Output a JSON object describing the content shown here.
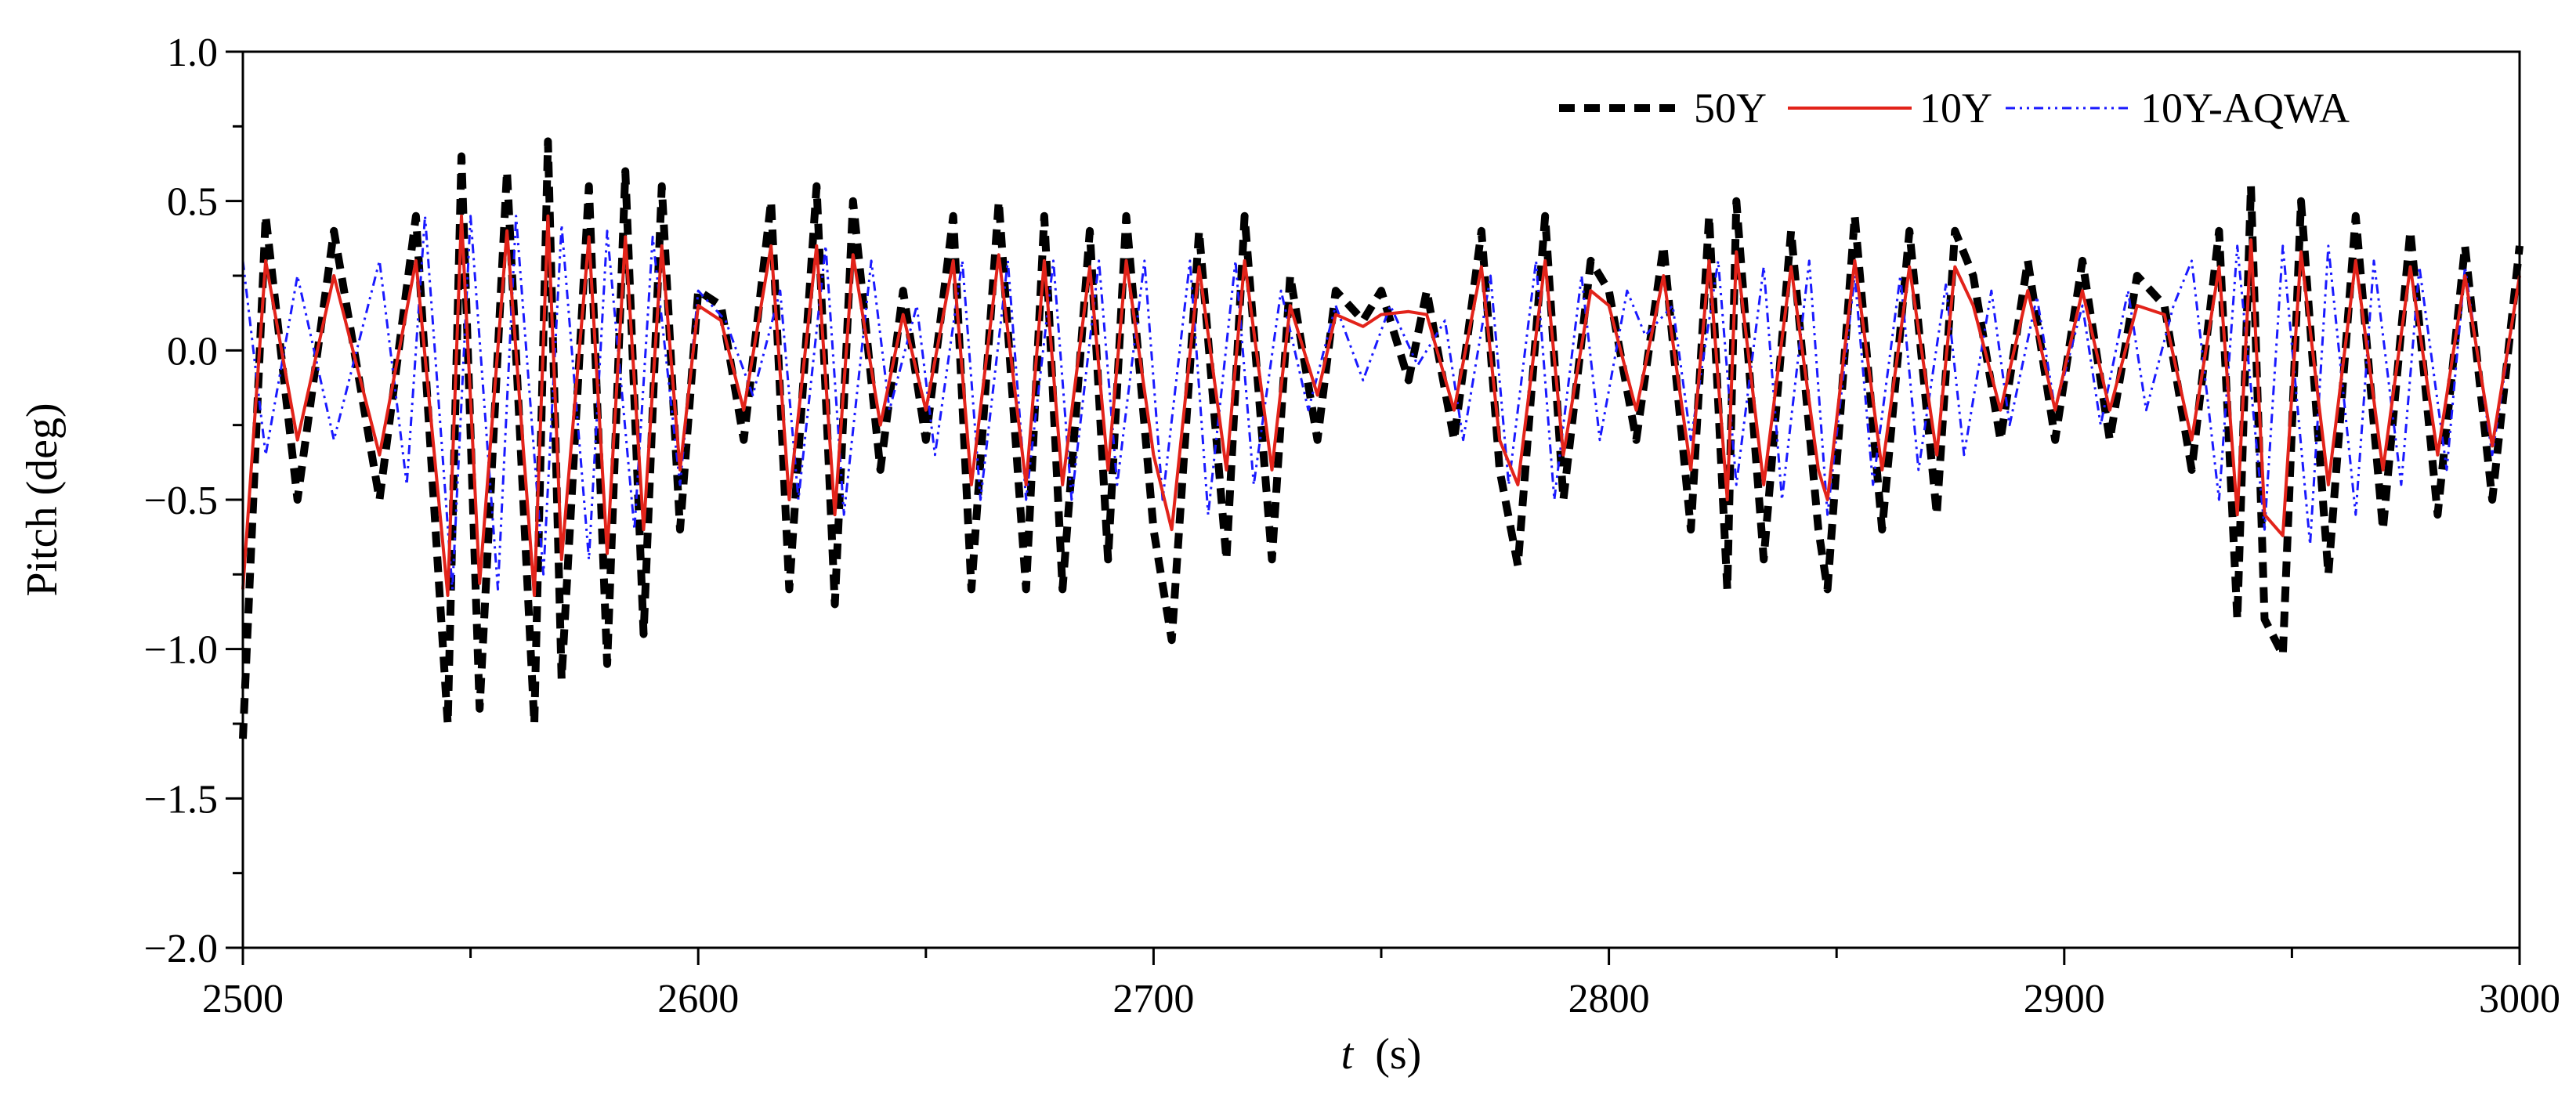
{
  "chart_data": {
    "type": "line",
    "title": "",
    "xlabel_italic": "t",
    "xlabel_unit": "(s)",
    "ylabel": "Pitch (deg)",
    "xlim": [
      2500,
      3000
    ],
    "ylim": [
      -2.0,
      1.0
    ],
    "x_ticks": [
      2500,
      2600,
      2700,
      2800,
      2900,
      3000
    ],
    "x_tick_labels": [
      "2500",
      "2600",
      "2700",
      "2800",
      "2900",
      "3000"
    ],
    "y_ticks": [
      1.0,
      0.5,
      0.0,
      -0.5,
      -1.0,
      -1.5,
      -2.0
    ],
    "y_tick_labels": [
      "1.0",
      "0.5",
      "0.0",
      "−0.5",
      "−1.0",
      "−1.5",
      "−2.0"
    ],
    "legend_position": "top-right",
    "series": [
      {
        "name": "50Y",
        "color": "#000000",
        "dash": "dashed",
        "x": [
          2500,
          2505,
          2512,
          2520,
          2530,
          2538,
          2545,
          2548,
          2552,
          2558,
          2564,
          2567,
          2570,
          2576,
          2580,
          2584,
          2588,
          2592,
          2596,
          2600,
          2605,
          2610,
          2616,
          2620,
          2626,
          2630,
          2634,
          2640,
          2645,
          2650,
          2656,
          2660,
          2666,
          2672,
          2676,
          2680,
          2686,
          2690,
          2694,
          2700,
          2704,
          2710,
          2716,
          2720,
          2726,
          2730,
          2736,
          2740,
          2746,
          2750,
          2756,
          2760,
          2766,
          2772,
          2776,
          2780,
          2786,
          2790,
          2796,
          2800,
          2806,
          2812,
          2818,
          2822,
          2826,
          2828,
          2834,
          2840,
          2846,
          2848,
          2854,
          2860,
          2866,
          2872,
          2876,
          2880,
          2886,
          2892,
          2898,
          2904,
          2910,
          2916,
          2922,
          2928,
          2934,
          2938,
          2941,
          2944,
          2948,
          2952,
          2958,
          2964,
          2970,
          2976,
          2982,
          2988,
          2994,
          3000
        ],
        "y": [
          -1.3,
          0.45,
          -0.5,
          0.4,
          -0.5,
          0.45,
          -1.25,
          0.65,
          -1.2,
          0.6,
          -1.25,
          0.7,
          -1.1,
          0.55,
          -1.05,
          0.6,
          -0.95,
          0.55,
          -0.6,
          0.2,
          0.15,
          -0.3,
          0.5,
          -0.8,
          0.55,
          -0.85,
          0.5,
          -0.4,
          0.2,
          -0.3,
          0.45,
          -0.8,
          0.5,
          -0.8,
          0.45,
          -0.8,
          0.4,
          -0.7,
          0.45,
          -0.6,
          -0.97,
          0.4,
          -0.7,
          0.45,
          -0.7,
          0.25,
          -0.3,
          0.2,
          0.1,
          0.2,
          -0.1,
          0.2,
          -0.3,
          0.4,
          -0.4,
          -0.72,
          0.45,
          -0.5,
          0.3,
          0.2,
          -0.3,
          0.35,
          -0.6,
          0.45,
          -0.8,
          0.5,
          -0.7,
          0.4,
          -0.6,
          -0.8,
          0.45,
          -0.6,
          0.4,
          -0.55,
          0.4,
          0.25,
          -0.3,
          0.3,
          -0.3,
          0.3,
          -0.3,
          0.25,
          0.15,
          -0.4,
          0.4,
          -0.9,
          0.55,
          -0.9,
          -1.02,
          0.5,
          -0.75,
          0.45,
          -0.6,
          0.4,
          -0.55,
          0.35,
          -0.5,
          0.35
        ]
      },
      {
        "name": "10Y",
        "color": "#e2231a",
        "dash": "solid",
        "x": [
          2500,
          2505,
          2512,
          2520,
          2530,
          2538,
          2545,
          2548,
          2552,
          2558,
          2564,
          2567,
          2570,
          2576,
          2580,
          2584,
          2588,
          2592,
          2596,
          2600,
          2605,
          2610,
          2616,
          2620,
          2626,
          2630,
          2634,
          2640,
          2645,
          2650,
          2656,
          2660,
          2666,
          2672,
          2676,
          2680,
          2686,
          2690,
          2694,
          2700,
          2704,
          2710,
          2716,
          2720,
          2726,
          2730,
          2736,
          2740,
          2746,
          2750,
          2756,
          2760,
          2766,
          2772,
          2776,
          2780,
          2786,
          2790,
          2796,
          2800,
          2806,
          2812,
          2818,
          2822,
          2826,
          2828,
          2834,
          2840,
          2846,
          2848,
          2854,
          2860,
          2866,
          2872,
          2876,
          2880,
          2886,
          2892,
          2898,
          2904,
          2910,
          2916,
          2922,
          2928,
          2934,
          2938,
          2941,
          2944,
          2948,
          2952,
          2958,
          2964,
          2970,
          2976,
          2982,
          2988,
          2994,
          3000
        ],
        "y": [
          -0.8,
          0.3,
          -0.3,
          0.25,
          -0.35,
          0.3,
          -0.82,
          0.45,
          -0.78,
          0.4,
          -0.82,
          0.45,
          -0.7,
          0.38,
          -0.68,
          0.38,
          -0.6,
          0.35,
          -0.4,
          0.15,
          0.1,
          -0.2,
          0.35,
          -0.5,
          0.35,
          -0.55,
          0.32,
          -0.25,
          0.12,
          -0.2,
          0.3,
          -0.45,
          0.32,
          -0.45,
          0.3,
          -0.45,
          0.28,
          -0.4,
          0.3,
          -0.35,
          -0.6,
          0.28,
          -0.4,
          0.3,
          -0.4,
          0.15,
          -0.15,
          0.12,
          0.08,
          0.12,
          0.13,
          0.12,
          -0.2,
          0.28,
          -0.3,
          -0.45,
          0.3,
          -0.35,
          0.2,
          0.15,
          -0.2,
          0.25,
          -0.4,
          0.3,
          -0.5,
          0.33,
          -0.45,
          0.28,
          -0.4,
          -0.5,
          0.3,
          -0.4,
          0.28,
          -0.35,
          0.28,
          0.15,
          -0.2,
          0.2,
          -0.2,
          0.2,
          -0.2,
          0.15,
          0.12,
          -0.3,
          0.28,
          -0.55,
          0.37,
          -0.55,
          -0.62,
          0.33,
          -0.45,
          0.3,
          -0.4,
          0.28,
          -0.35,
          0.25,
          -0.32,
          0.25
        ]
      },
      {
        "name": "10Y-AQWA",
        "color": "#1a1aff",
        "dash": "dash-dot",
        "x": [
          2500,
          2505,
          2512,
          2520,
          2530,
          2536,
          2540,
          2546,
          2550,
          2556,
          2560,
          2566,
          2570,
          2576,
          2580,
          2586,
          2590,
          2596,
          2600,
          2606,
          2612,
          2618,
          2622,
          2628,
          2632,
          2638,
          2642,
          2648,
          2652,
          2658,
          2662,
          2668,
          2672,
          2678,
          2682,
          2688,
          2692,
          2698,
          2702,
          2708,
          2712,
          2718,
          2722,
          2728,
          2734,
          2740,
          2746,
          2752,
          2758,
          2764,
          2768,
          2774,
          2778,
          2784,
          2788,
          2794,
          2798,
          2804,
          2808,
          2814,
          2818,
          2824,
          2828,
          2834,
          2838,
          2844,
          2848,
          2854,
          2858,
          2864,
          2868,
          2874,
          2878,
          2884,
          2888,
          2894,
          2898,
          2904,
          2908,
          2914,
          2918,
          2924,
          2928,
          2934,
          2938,
          2944,
          2948,
          2954,
          2958,
          2964,
          2968,
          2974,
          2978,
          2984,
          2988,
          2994,
          3000
        ],
        "y": [
          0.3,
          -0.35,
          0.25,
          -0.3,
          0.3,
          -0.45,
          0.45,
          -0.8,
          0.45,
          -0.8,
          0.45,
          -0.75,
          0.42,
          -0.7,
          0.4,
          -0.6,
          0.38,
          -0.45,
          0.2,
          0.1,
          -0.15,
          0.2,
          -0.5,
          0.35,
          -0.55,
          0.3,
          -0.2,
          0.15,
          -0.35,
          0.3,
          -0.5,
          0.3,
          -0.5,
          0.3,
          -0.5,
          0.3,
          -0.45,
          0.3,
          -0.5,
          0.3,
          -0.55,
          0.3,
          -0.45,
          0.2,
          -0.2,
          0.15,
          -0.1,
          0.15,
          -0.05,
          0.1,
          -0.3,
          0.25,
          -0.45,
          0.3,
          -0.5,
          0.25,
          -0.3,
          0.2,
          0.05,
          0.15,
          -0.3,
          0.3,
          -0.45,
          0.28,
          -0.5,
          0.3,
          -0.55,
          0.25,
          -0.45,
          0.25,
          -0.4,
          0.22,
          -0.35,
          0.2,
          -0.25,
          0.18,
          -0.2,
          0.15,
          -0.25,
          0.2,
          -0.2,
          0.15,
          0.3,
          -0.5,
          0.35,
          -0.6,
          0.35,
          -0.65,
          0.35,
          -0.55,
          0.3,
          -0.45,
          0.28,
          -0.4,
          0.28,
          -0.35,
          0.25
        ]
      }
    ]
  }
}
